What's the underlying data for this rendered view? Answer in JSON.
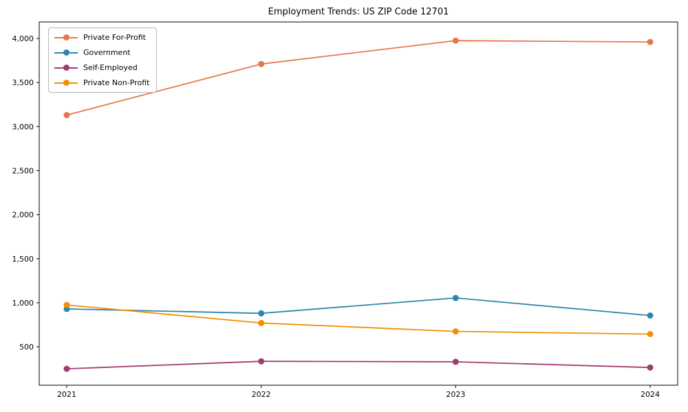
{
  "chart": {
    "background_color": "#ffffff",
    "axis_color": "#000000",
    "text_color": "#000000"
  },
  "chart_data": {
    "type": "line",
    "title": "Employment Trends: US ZIP Code 12701",
    "xlabel": "",
    "ylabel": "",
    "categories": [
      "2021",
      "2022",
      "2023",
      "2024"
    ],
    "series": [
      {
        "name": "Private For-Profit",
        "color": "#e8764b",
        "values": [
          3130,
          3710,
          3975,
          3960
        ]
      },
      {
        "name": "Government",
        "color": "#2e86ab",
        "values": [
          930,
          880,
          1055,
          855
        ]
      },
      {
        "name": "Self-Employed",
        "color": "#a23b72",
        "values": [
          250,
          335,
          330,
          265
        ]
      },
      {
        "name": "Private Non-Profit",
        "color": "#f18f01",
        "values": [
          975,
          770,
          675,
          645
        ]
      }
    ],
    "ylim": [
      64,
      4187
    ],
    "yticks": [
      500,
      1000,
      1500,
      2000,
      2500,
      3000,
      3500,
      4000
    ],
    "ytick_labels": [
      "500",
      "1,000",
      "1,500",
      "2,000",
      "2,500",
      "3,000",
      "3,500",
      "4,000"
    ],
    "legend_position": "upper left",
    "grid": false,
    "marker": "circle",
    "line_width": 1.8,
    "marker_radius": 4.5
  }
}
